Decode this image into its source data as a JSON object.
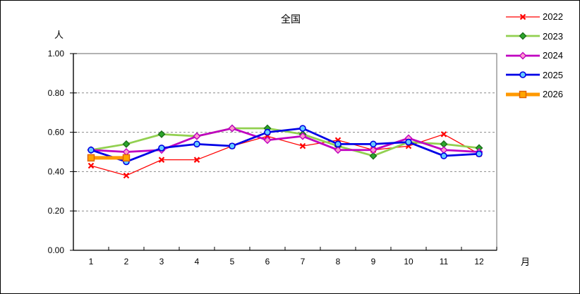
{
  "title": "全国",
  "y_axis": {
    "unit_label": "人",
    "tick_labels": [
      "0.00",
      "0.20",
      "0.40",
      "0.60",
      "0.80",
      "1.00"
    ]
  },
  "x_axis": {
    "unit_label": "月",
    "tick_labels": [
      "1",
      "2",
      "3",
      "4",
      "5",
      "6",
      "7",
      "8",
      "9",
      "10",
      "11",
      "12"
    ]
  },
  "legend": {
    "entries": [
      "2022",
      "2023",
      "2024",
      "2025",
      "2026"
    ]
  },
  "chart_data": {
    "type": "line",
    "title": "全国",
    "xlabel": "月",
    "ylabel": "人",
    "x": [
      1,
      2,
      3,
      4,
      5,
      6,
      7,
      8,
      9,
      10,
      11,
      12
    ],
    "ylim": [
      0.0,
      1.0
    ],
    "ytick_step": 0.2,
    "grid": "horizontal-dashed",
    "legend_position": "top-right-outside",
    "series": [
      {
        "name": "2022",
        "line_color": "#FF0000",
        "line_width": 1.25,
        "marker": "x",
        "marker_fill": "#FF0000",
        "marker_stroke": "#FF0000",
        "values": [
          0.43,
          0.38,
          0.46,
          0.46,
          0.53,
          0.58,
          0.53,
          0.56,
          0.51,
          0.53,
          0.59,
          0.49
        ]
      },
      {
        "name": "2023",
        "line_color": "#92D050",
        "line_width": 2.75,
        "marker": "diamond",
        "marker_fill": "#2CA72C",
        "marker_stroke": "#1C6E1C",
        "values": [
          0.51,
          0.54,
          0.59,
          0.58,
          0.62,
          0.62,
          0.59,
          0.53,
          0.48,
          0.55,
          0.54,
          0.52
        ]
      },
      {
        "name": "2024",
        "line_color": "#C000C0",
        "line_width": 2.75,
        "marker": "diamond",
        "marker_fill": "#FF99CC",
        "marker_stroke": "#C000C0",
        "values": [
          0.51,
          0.5,
          0.51,
          0.58,
          0.62,
          0.56,
          0.58,
          0.51,
          0.51,
          0.57,
          0.51,
          0.5
        ]
      },
      {
        "name": "2025",
        "line_color": "#0000E6",
        "line_width": 2.75,
        "marker": "circle",
        "marker_fill": "#66CCFF",
        "marker_stroke": "#0000E6",
        "values": [
          0.51,
          0.45,
          0.52,
          0.54,
          0.53,
          0.6,
          0.62,
          0.54,
          0.54,
          0.55,
          0.48,
          0.49
        ]
      },
      {
        "name": "2026",
        "line_color": "#FF9900",
        "line_width": 5,
        "marker": "square",
        "marker_fill": "#FFA500",
        "marker_stroke": "#E06000",
        "values": [
          0.47,
          0.47,
          null,
          null,
          null,
          null,
          null,
          null,
          null,
          null,
          null,
          null
        ]
      }
    ]
  }
}
